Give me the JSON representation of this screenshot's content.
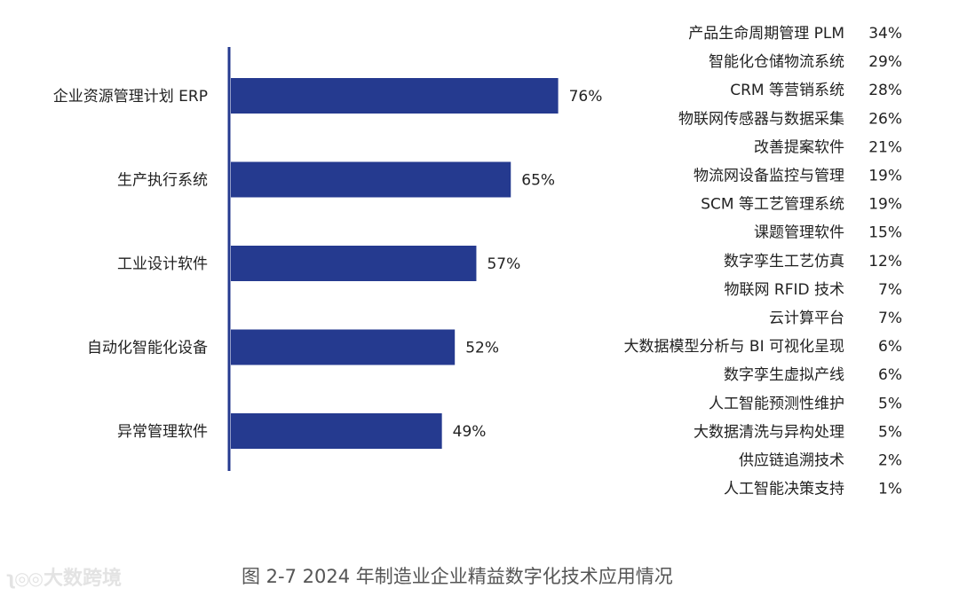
{
  "caption": "图 2-7 2024 年制造业企业精益数字化技术应用情况",
  "watermark": "大数跨境",
  "chart_data": [
    {
      "type": "bar",
      "orientation": "horizontal",
      "color": "#253a8f",
      "categories": [
        "企业资源管理计划 ERP",
        "生产执行系统",
        "工业设计软件",
        "自动化智能化设备",
        "异常管理软件"
      ],
      "values": [
        76,
        65,
        57,
        52,
        49
      ],
      "value_labels": [
        "76%",
        "65%",
        "57%",
        "52%",
        "49%"
      ],
      "unit": "%",
      "xlim": [
        0,
        100
      ]
    },
    {
      "type": "table",
      "rows": [
        {
          "label": "产品生命周期管理 PLM",
          "value": "34%"
        },
        {
          "label": "智能化仓储物流系统",
          "value": "29%"
        },
        {
          "label": "CRM 等营销系统",
          "value": "28%"
        },
        {
          "label": "物联网传感器与数据采集",
          "value": "26%"
        },
        {
          "label": "改善提案软件",
          "value": "21%"
        },
        {
          "label": "物流网设备监控与管理",
          "value": "19%"
        },
        {
          "label": "SCM 等工艺管理系统",
          "value": "19%"
        },
        {
          "label": "课题管理软件",
          "value": "15%"
        },
        {
          "label": "数字孪生工艺仿真",
          "value": "12%"
        },
        {
          "label": "物联网 RFID 技术",
          "value": "7%"
        },
        {
          "label": "云计算平台",
          "value": "7%"
        },
        {
          "label": "大数据模型分析与 BI 可视化呈现",
          "value": "6%"
        },
        {
          "label": "数字孪生虚拟产线",
          "value": "6%"
        },
        {
          "label": "人工智能预测性维护",
          "value": "5%"
        },
        {
          "label": "大数据清洗与异构处理",
          "value": "5%"
        },
        {
          "label": "供应链追溯技术",
          "value": "2%"
        },
        {
          "label": "人工智能决策支持",
          "value": "1%"
        }
      ]
    }
  ]
}
